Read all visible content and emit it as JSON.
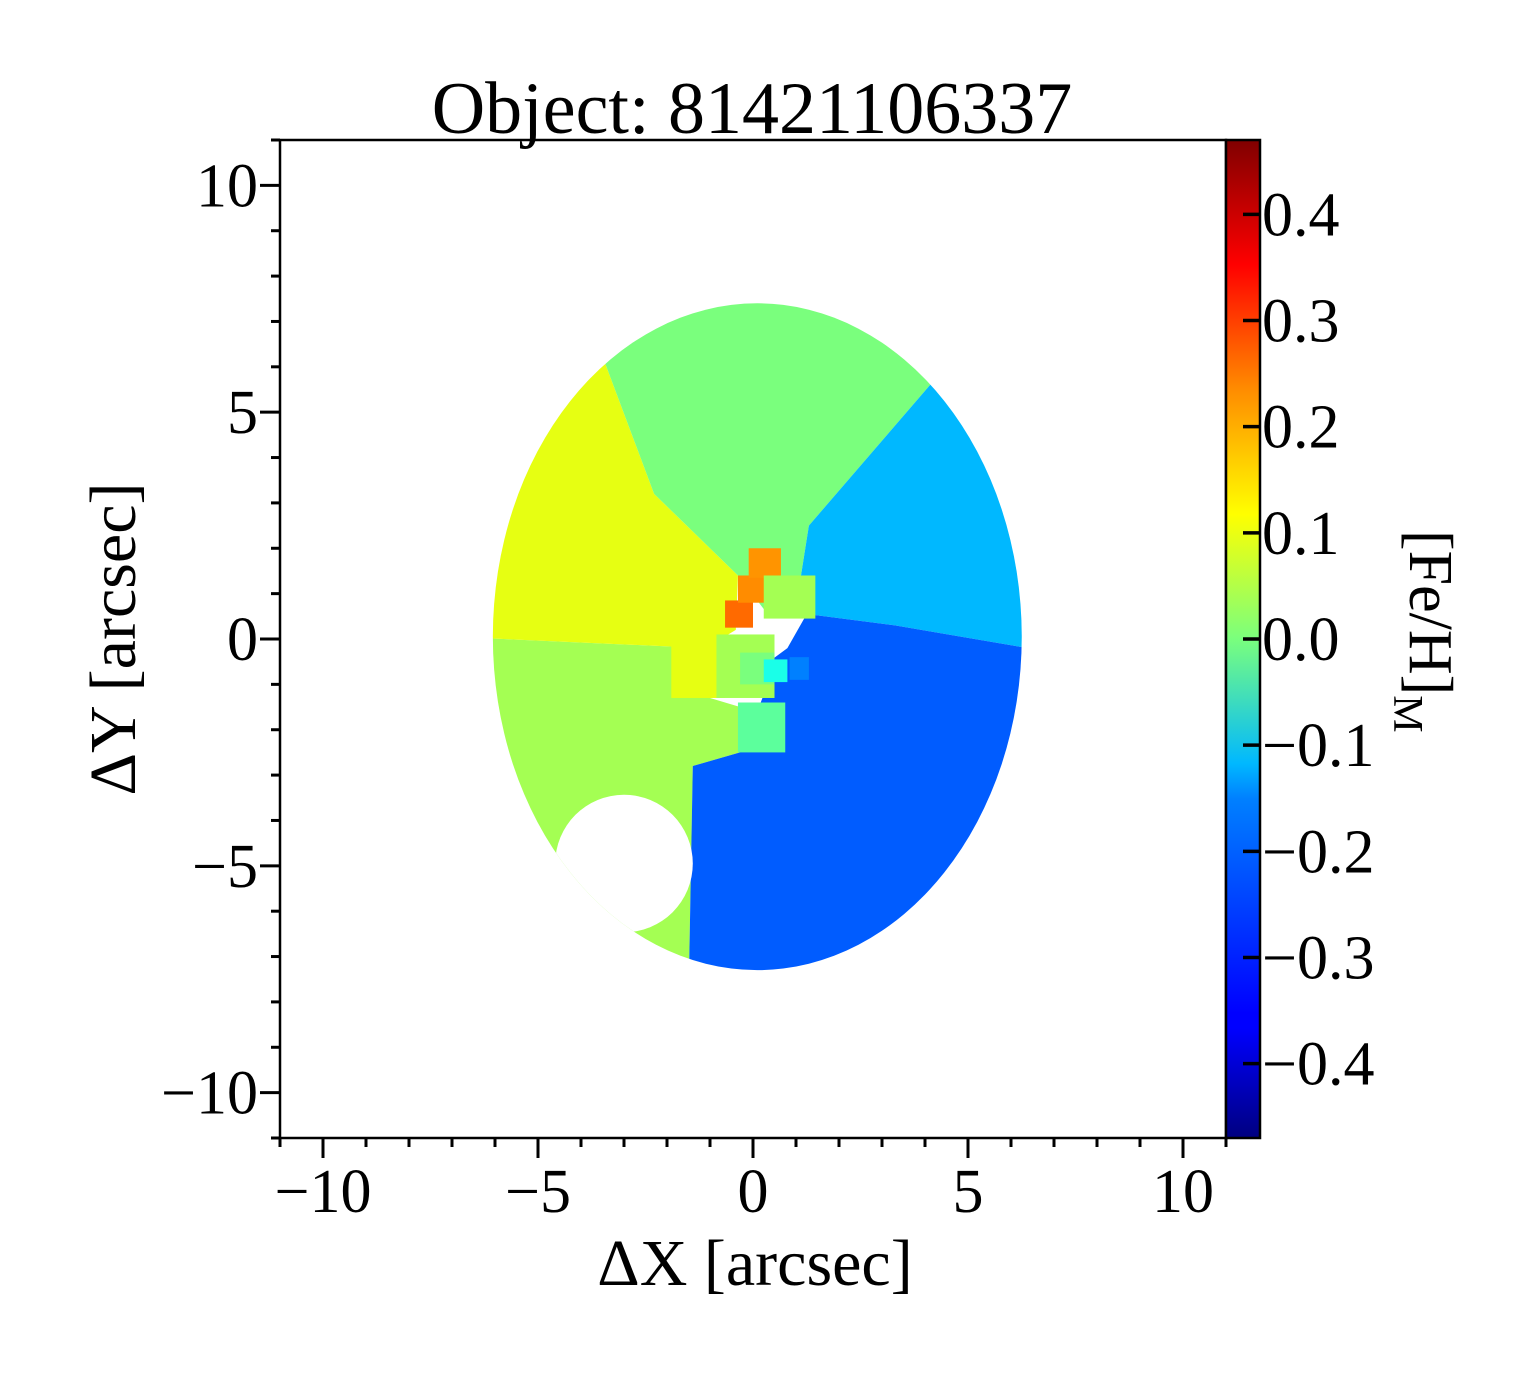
{
  "chart_data": {
    "type": "heatmap",
    "title": "Object: 81421106337",
    "xlabel": "ΔX [arcsec]",
    "ylabel": "ΔY [arcsec]",
    "xlim": [
      -11,
      11
    ],
    "ylim": [
      -11,
      11
    ],
    "x_ticks": [
      -10,
      -5,
      0,
      5,
      10
    ],
    "y_ticks": [
      -10,
      -5,
      0,
      5,
      10
    ],
    "x_tick_labels": [
      "−10",
      "−5",
      "0",
      "5",
      "10"
    ],
    "y_tick_labels": [
      "−10",
      "−5",
      "0",
      "5",
      "10"
    ],
    "colorbar": {
      "label_main": "[Fe/H]",
      "label_sub": "M",
      "range": [
        -0.47,
        0.47
      ],
      "colormap": "jet",
      "ticks": [
        0.4,
        0.3,
        0.2,
        0.1,
        0.0,
        -0.1,
        -0.2,
        -0.3,
        -0.4
      ],
      "tick_labels": [
        "0.4",
        "0.3",
        "0.2",
        "0.1",
        "0.0",
        "−0.1",
        "−0.2",
        "−0.3",
        "−0.4"
      ]
    },
    "field_of_view": {
      "center": [
        0.1,
        0.05
      ],
      "radius_x": 6.15,
      "radius_y": 7.35
    },
    "masked_region": {
      "center": [
        -3.0,
        -4.95
      ],
      "radius": 1.6
    },
    "regions": [
      {
        "name": "north",
        "value": 0.02,
        "color": "#7aff7d"
      },
      {
        "name": "northeast",
        "value": -0.17,
        "color": "#00b8ff"
      },
      {
        "name": "southeast",
        "value": -0.29,
        "color": "#005cff"
      },
      {
        "name": "northwest",
        "value": 0.12,
        "color": "#e6ff12"
      },
      {
        "name": "southwest",
        "value": 0.05,
        "color": "#a4ff53"
      }
    ],
    "central_bins": [
      {
        "x": -0.65,
        "y": 0.25,
        "w": 0.65,
        "h": 0.6,
        "value": 0.28,
        "color": "#ff6a00"
      },
      {
        "x": -0.35,
        "y": 0.8,
        "w": 0.65,
        "h": 0.6,
        "value": 0.24,
        "color": "#ff8c00"
      },
      {
        "x": -0.1,
        "y": 1.35,
        "w": 0.75,
        "h": 0.65,
        "value": 0.23,
        "color": "#ff9400"
      },
      {
        "x": -1.9,
        "y": -1.3,
        "w": 1.25,
        "h": 1.3,
        "value": 0.12,
        "color": "#e6ff12"
      },
      {
        "x": -0.85,
        "y": -1.3,
        "w": 1.35,
        "h": 1.4,
        "value": 0.06,
        "color": "#a4ff53"
      },
      {
        "x": 0.25,
        "y": 0.45,
        "w": 1.2,
        "h": 0.95,
        "value": 0.05,
        "color": "#a4ff53"
      },
      {
        "x": -0.3,
        "y": -1.0,
        "w": 0.8,
        "h": 0.7,
        "value": 0.02,
        "color": "#7aff7d"
      },
      {
        "x": -0.35,
        "y": -2.5,
        "w": 1.1,
        "h": 1.1,
        "value": 0.01,
        "color": "#5cff9c"
      },
      {
        "x": 0.25,
        "y": -0.95,
        "w": 0.55,
        "h": 0.5,
        "value": -0.13,
        "color": "#1affe8"
      },
      {
        "x": 0.85,
        "y": -0.9,
        "w": 0.45,
        "h": 0.5,
        "value": -0.25,
        "color": "#0080ff"
      }
    ]
  }
}
